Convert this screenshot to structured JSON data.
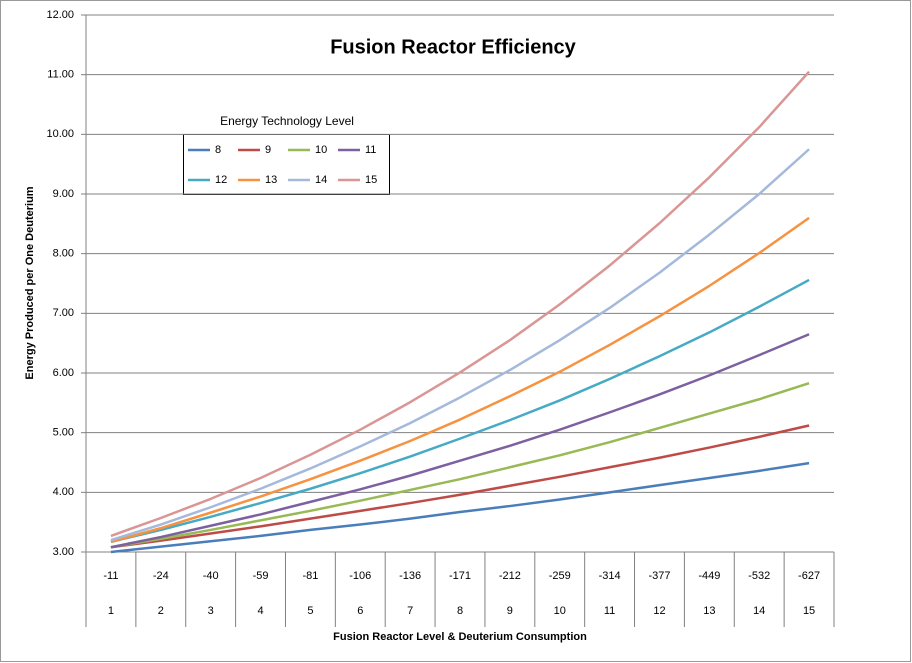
{
  "chart_data": {
    "type": "line",
    "title": "Fusion Reactor Efficiency",
    "y_label": "Energy Produced per One Deuterium",
    "x_label": "Fusion Reactor Level & Deuterium Consumption",
    "legend_title": "Energy Technology Level",
    "categories": [
      "1",
      "2",
      "3",
      "4",
      "5",
      "6",
      "7",
      "8",
      "9",
      "10",
      "11",
      "12",
      "13",
      "14",
      "15"
    ],
    "consumption": [
      "-11",
      "-24",
      "-40",
      "-59",
      "-81",
      "-106",
      "-136",
      "-171",
      "-212",
      "-259",
      "-314",
      "-377",
      "-449",
      "-532",
      "-627"
    ],
    "ylim": [
      3,
      12
    ],
    "yticks": [
      {
        "value": 3,
        "label": "3.00"
      },
      {
        "value": 4,
        "label": "4.00"
      },
      {
        "value": 5,
        "label": "5.00"
      },
      {
        "value": 6,
        "label": "6.00"
      },
      {
        "value": 7,
        "label": "7.00"
      },
      {
        "value": 8,
        "label": "8.00"
      },
      {
        "value": 9,
        "label": "9.00"
      },
      {
        "value": 10,
        "label": "10.00"
      },
      {
        "value": 11,
        "label": "11.00"
      },
      {
        "value": 12,
        "label": "12.00"
      }
    ],
    "grid": true,
    "series": [
      {
        "name": "8",
        "color": "#4a7ebb",
        "values": [
          3.0,
          3.09,
          3.18,
          3.27,
          3.37,
          3.46,
          3.56,
          3.67,
          3.77,
          3.88,
          4.0,
          4.12,
          4.24,
          4.36,
          4.49
        ]
      },
      {
        "name": "9",
        "color": "#be4b48",
        "values": [
          3.08,
          3.19,
          3.31,
          3.43,
          3.56,
          3.69,
          3.82,
          3.96,
          4.11,
          4.26,
          4.42,
          4.58,
          4.75,
          4.93,
          5.12
        ]
      },
      {
        "name": "10",
        "color": "#98b954",
        "values": [
          3.08,
          3.22,
          3.37,
          3.53,
          3.69,
          3.86,
          4.04,
          4.22,
          4.42,
          4.62,
          4.84,
          5.08,
          5.32,
          5.56,
          5.83
        ]
      },
      {
        "name": "11",
        "color": "#7d60a0",
        "values": [
          3.08,
          3.25,
          3.44,
          3.63,
          3.84,
          4.05,
          4.28,
          4.53,
          4.78,
          5.05,
          5.34,
          5.64,
          5.96,
          6.3,
          6.65
        ]
      },
      {
        "name": "12",
        "color": "#46aac5",
        "values": [
          3.17,
          3.37,
          3.59,
          3.82,
          4.06,
          4.32,
          4.6,
          4.9,
          5.21,
          5.54,
          5.9,
          6.28,
          6.68,
          7.11,
          7.56
        ]
      },
      {
        "name": "13",
        "color": "#f69240",
        "values": [
          3.17,
          3.4,
          3.66,
          3.93,
          4.22,
          4.53,
          4.86,
          5.22,
          5.61,
          6.02,
          6.47,
          6.95,
          7.46,
          8.01,
          8.6
        ]
      },
      {
        "name": "14",
        "color": "#a4b9dc",
        "values": [
          3.2,
          3.46,
          3.75,
          4.06,
          4.4,
          4.77,
          5.16,
          5.59,
          6.05,
          6.55,
          7.09,
          7.68,
          8.32,
          9.0,
          9.75
        ]
      },
      {
        "name": "15",
        "color": "#d99694",
        "values": [
          3.27,
          3.57,
          3.89,
          4.24,
          4.63,
          5.05,
          5.51,
          6.01,
          6.55,
          7.15,
          7.8,
          8.51,
          9.28,
          10.12,
          11.05
        ]
      }
    ]
  }
}
